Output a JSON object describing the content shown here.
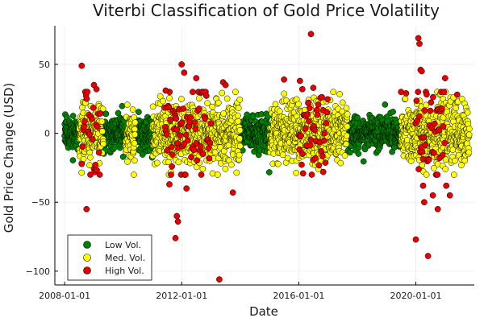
{
  "chart_data": {
    "type": "scatter",
    "title": "Viterbi Classification of Gold Price Volatility",
    "xlabel": "Date",
    "ylabel": "Gold Price Change (USD)",
    "x_is_date": true,
    "xlim": [
      "2007-09-01",
      "2021-12-31"
    ],
    "ylim": [
      -110,
      78
    ],
    "x_ticks": [
      "2008-01-01",
      "2012-01-01",
      "2016-01-01",
      "2020-01-01"
    ],
    "y_ticks": [
      -100,
      -50,
      0,
      50
    ],
    "grid": true,
    "legend_position": "bottom-left",
    "series": [
      {
        "name": "Low Vol.",
        "color": "#008000",
        "segments": [
          [
            "2008-01-01",
            "2008-06-30"
          ],
          [
            "2009-05-01",
            "2010-01-31"
          ],
          [
            "2010-06-01",
            "2010-12-31"
          ],
          [
            "2014-01-01",
            "2014-12-31"
          ],
          [
            "2017-09-01",
            "2019-06-30"
          ]
        ],
        "band_sd": 6
      },
      {
        "name": "Med. Vol.",
        "color": "#ffff00",
        "segments": [
          [
            "2008-07-01",
            "2009-04-30"
          ],
          [
            "2010-02-01",
            "2010-05-31"
          ],
          [
            "2011-01-01",
            "2013-12-31"
          ],
          [
            "2015-01-01",
            "2017-08-31"
          ],
          [
            "2019-07-01",
            "2021-10-31"
          ]
        ],
        "band_sd": 11
      },
      {
        "name": "High Vol.",
        "color": "#e60000",
        "segments": [
          [
            "2008-08-01",
            "2009-03-31"
          ],
          [
            "2011-06-01",
            "2012-12-31"
          ],
          [
            "2016-01-01",
            "2016-12-31"
          ],
          [
            "2020-01-01",
            "2020-12-31"
          ]
        ],
        "band_sd": 20,
        "points": [
          [
            "2008-08-01",
            49
          ],
          [
            "2008-10-01",
            -55
          ],
          [
            "2009-01-01",
            35
          ],
          [
            "2009-02-01",
            32
          ],
          [
            "2011-06-15",
            31
          ],
          [
            "2011-08-01",
            -37
          ],
          [
            "2011-09-01",
            -24
          ],
          [
            "2012-01-01",
            50
          ],
          [
            "2012-02-01",
            44
          ],
          [
            "2011-11-01",
            -60
          ],
          [
            "2011-11-15",
            -64
          ],
          [
            "2011-10-15",
            -76
          ],
          [
            "2012-03-01",
            -40
          ],
          [
            "2012-07-01",
            40
          ],
          [
            "2012-09-01",
            -30
          ],
          [
            "2013-04-15",
            -106
          ],
          [
            "2013-06-01",
            37
          ],
          [
            "2013-07-01",
            35
          ],
          [
            "2013-10-01",
            -43
          ],
          [
            "2015-07-01",
            39
          ],
          [
            "2016-01-15",
            38
          ],
          [
            "2016-02-15",
            32
          ],
          [
            "2016-06-01",
            72
          ],
          [
            "2016-07-01",
            33
          ],
          [
            "2016-11-01",
            -28
          ],
          [
            "2019-07-01",
            30
          ],
          [
            "2019-09-01",
            29
          ],
          [
            "2020-01-01",
            -77
          ],
          [
            "2020-02-01",
            69
          ],
          [
            "2020-02-15",
            65
          ],
          [
            "2020-03-01",
            46
          ],
          [
            "2020-03-15",
            45
          ],
          [
            "2020-04-01",
            -38
          ],
          [
            "2020-04-15",
            -50
          ],
          [
            "2020-06-01",
            -89
          ],
          [
            "2020-08-01",
            -45
          ],
          [
            "2020-10-01",
            -55
          ],
          [
            "2021-01-01",
            40
          ],
          [
            "2021-01-15",
            -38
          ],
          [
            "2021-03-01",
            -45
          ],
          [
            "2021-06-01",
            28
          ]
        ]
      }
    ]
  }
}
